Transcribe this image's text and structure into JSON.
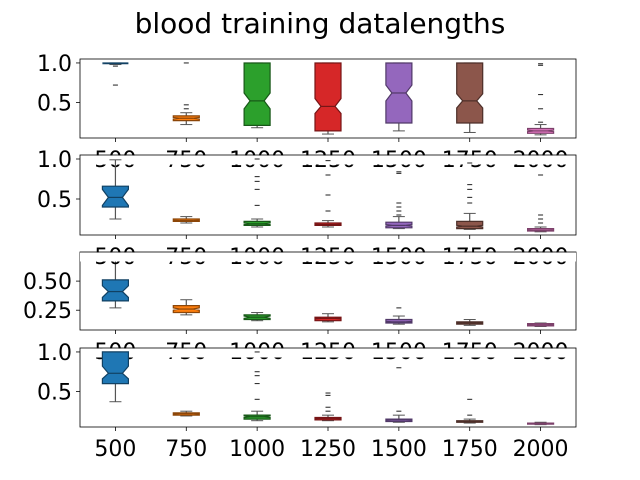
{
  "chart_data": {
    "type": "boxplot",
    "title": "blood training datalengths",
    "notched": true,
    "categories": [
      "500",
      "750",
      "1000",
      "1250",
      "1500",
      "1750",
      "2000"
    ],
    "colors": [
      "#1f77b4",
      "#ff7f0e",
      "#2ca02c",
      "#d62728",
      "#9467bd",
      "#8c564b",
      "#e377c2"
    ],
    "grid": false,
    "legend": "none",
    "subplots": [
      {
        "ylim": [
          0.05,
          1.05
        ],
        "yticks": [
          "0.5",
          "1.0"
        ],
        "ytick_values": [
          0.5,
          1.0
        ],
        "boxes": [
          {
            "min": 0.98,
            "q1": 0.99,
            "median": 0.995,
            "q3": 1.0,
            "max": 1.0,
            "notch": [
              0.99,
              1.0
            ],
            "outliers": [
              0.72,
              0.96
            ]
          },
          {
            "min": 0.22,
            "q1": 0.27,
            "median": 0.3,
            "q3": 0.33,
            "max": 0.37,
            "notch": [
              0.29,
              0.31
            ],
            "outliers": [
              0.42,
              0.47,
              1.0
            ]
          },
          {
            "min": 0.18,
            "q1": 0.21,
            "median": 0.52,
            "q3": 1.0,
            "max": 1.0,
            "notch": [
              0.42,
              0.62
            ],
            "outliers": []
          },
          {
            "min": 0.1,
            "q1": 0.14,
            "median": 0.45,
            "q3": 1.0,
            "max": 1.0,
            "notch": [
              0.36,
              0.55
            ],
            "outliers": []
          },
          {
            "min": 0.14,
            "q1": 0.24,
            "median": 0.62,
            "q3": 1.0,
            "max": 1.0,
            "notch": [
              0.52,
              0.72
            ],
            "outliers": []
          },
          {
            "min": 0.12,
            "q1": 0.24,
            "median": 0.52,
            "q3": 1.0,
            "max": 1.0,
            "notch": [
              0.43,
              0.61
            ],
            "outliers": []
          },
          {
            "min": 0.09,
            "q1": 0.11,
            "median": 0.14,
            "q3": 0.17,
            "max": 0.22,
            "notch": [
              0.13,
              0.15
            ],
            "outliers": [
              0.25,
              0.42,
              0.6,
              0.97,
              0.99
            ]
          }
        ]
      },
      {
        "ylim": [
          0.05,
          1.05
        ],
        "yticks": [
          "0.5",
          "1.0"
        ],
        "ytick_values": [
          0.5,
          1.0
        ],
        "boxes": [
          {
            "min": 0.25,
            "q1": 0.4,
            "median": 0.52,
            "q3": 0.66,
            "max": 0.99,
            "notch": [
              0.42,
              0.62
            ],
            "outliers": []
          },
          {
            "min": 0.2,
            "q1": 0.22,
            "median": 0.23,
            "q3": 0.25,
            "max": 0.28,
            "notch": [
              0.225,
              0.235
            ],
            "outliers": []
          },
          {
            "min": 0.15,
            "q1": 0.17,
            "median": 0.19,
            "q3": 0.22,
            "max": 0.25,
            "notch": [
              0.18,
              0.2
            ],
            "outliers": [
              0.42,
              0.62,
              0.72,
              0.78,
              1.0
            ]
          },
          {
            "min": 0.15,
            "q1": 0.17,
            "median": 0.18,
            "q3": 0.2,
            "max": 0.23,
            "notch": [
              0.175,
              0.185
            ],
            "outliers": [
              0.35,
              0.55,
              0.8,
              0.98
            ]
          },
          {
            "min": 0.13,
            "q1": 0.14,
            "median": 0.17,
            "q3": 0.21,
            "max": 0.28,
            "notch": [
              0.16,
              0.18
            ],
            "outliers": [
              0.3,
              0.35,
              0.4,
              0.45,
              0.82,
              0.84
            ]
          },
          {
            "min": 0.12,
            "q1": 0.13,
            "median": 0.16,
            "q3": 0.22,
            "max": 0.32,
            "notch": [
              0.15,
              0.17
            ],
            "outliers": [
              0.45,
              0.52,
              0.62,
              0.68,
              0.95
            ]
          },
          {
            "min": 0.09,
            "q1": 0.1,
            "median": 0.11,
            "q3": 0.13,
            "max": 0.15,
            "notch": [
              0.105,
              0.115
            ],
            "outliers": [
              0.2,
              0.25,
              0.3,
              0.8
            ]
          }
        ]
      },
      {
        "ylim": [
          0.08,
          0.75
        ],
        "yticks": [
          "0.25",
          "0.50"
        ],
        "ytick_values": [
          0.25,
          0.5
        ],
        "boxes": [
          {
            "min": 0.27,
            "q1": 0.33,
            "median": 0.41,
            "q3": 0.51,
            "max": 0.71,
            "notch": [
              0.36,
              0.46
            ],
            "outliers": []
          },
          {
            "min": 0.21,
            "q1": 0.23,
            "median": 0.26,
            "q3": 0.29,
            "max": 0.34,
            "notch": [
              0.25,
              0.27
            ],
            "outliers": []
          },
          {
            "min": 0.16,
            "q1": 0.17,
            "median": 0.19,
            "q3": 0.21,
            "max": 0.23,
            "notch": [
              0.18,
              0.2
            ],
            "outliers": []
          },
          {
            "min": 0.15,
            "q1": 0.16,
            "median": 0.18,
            "q3": 0.19,
            "max": 0.22,
            "notch": [
              0.175,
              0.185
            ],
            "outliers": []
          },
          {
            "min": 0.13,
            "q1": 0.14,
            "median": 0.15,
            "q3": 0.17,
            "max": 0.2,
            "notch": [
              0.145,
              0.155
            ],
            "outliers": [
              0.27
            ]
          },
          {
            "min": 0.12,
            "q1": 0.13,
            "median": 0.14,
            "q3": 0.15,
            "max": 0.17,
            "notch": [
              0.135,
              0.145
            ],
            "outliers": []
          },
          {
            "min": 0.11,
            "q1": 0.115,
            "median": 0.125,
            "q3": 0.135,
            "max": 0.14,
            "notch": [
              0.12,
              0.13
            ],
            "outliers": []
          }
        ]
      },
      {
        "ylim": [
          0.05,
          1.05
        ],
        "yticks": [
          "0.5",
          "1.0"
        ],
        "ytick_values": [
          0.5,
          1.0
        ],
        "boxes": [
          {
            "min": 0.37,
            "q1": 0.6,
            "median": 0.73,
            "q3": 1.0,
            "max": 1.0,
            "notch": [
              0.66,
              0.82
            ],
            "outliers": []
          },
          {
            "min": 0.19,
            "q1": 0.2,
            "median": 0.22,
            "q3": 0.23,
            "max": 0.25,
            "notch": [
              0.215,
              0.225
            ],
            "outliers": []
          },
          {
            "min": 0.13,
            "q1": 0.15,
            "median": 0.18,
            "q3": 0.2,
            "max": 0.25,
            "notch": [
              0.17,
              0.19
            ],
            "outliers": [
              0.4,
              0.6,
              0.7,
              0.75,
              1.0
            ]
          },
          {
            "min": 0.13,
            "q1": 0.14,
            "median": 0.16,
            "q3": 0.17,
            "max": 0.2,
            "notch": [
              0.155,
              0.165
            ],
            "outliers": [
              0.25,
              0.3,
              0.45,
              0.48
            ]
          },
          {
            "min": 0.11,
            "q1": 0.12,
            "median": 0.14,
            "q3": 0.15,
            "max": 0.2,
            "notch": [
              0.135,
              0.145
            ],
            "outliers": [
              0.25,
              0.8
            ]
          },
          {
            "min": 0.1,
            "q1": 0.11,
            "median": 0.12,
            "q3": 0.13,
            "max": 0.15,
            "notch": [
              0.115,
              0.125
            ],
            "outliers": [
              0.2,
              0.4
            ]
          },
          {
            "min": 0.08,
            "q1": 0.085,
            "median": 0.09,
            "q3": 0.1,
            "max": 0.11,
            "notch": [
              0.087,
              0.093
            ],
            "outliers": []
          }
        ]
      }
    ]
  }
}
